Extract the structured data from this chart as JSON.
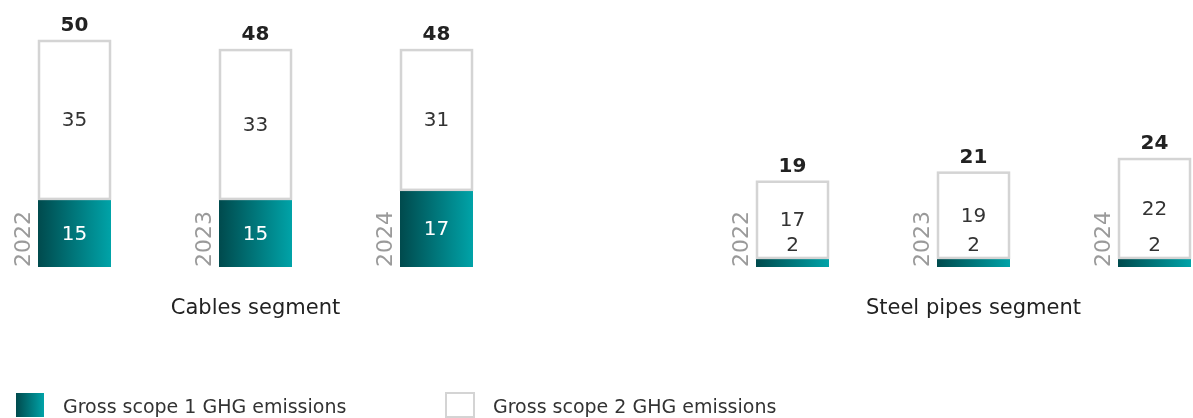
{
  "chart_data": [
    {
      "type": "bar",
      "stacked": true,
      "xlabel": "Cables segment",
      "categories": [
        "2022",
        "2023",
        "2024"
      ],
      "data_labels": true,
      "totals": [
        "50",
        "48",
        "48"
      ],
      "legend": "bottom",
      "series": [
        {
          "name": "Gross scope 1 GHG emissions",
          "color": "#00a3a8",
          "values": [
            15,
            15,
            17
          ]
        },
        {
          "name": "Gross scope 2 GHG emissions",
          "color": "#ffffff",
          "values": [
            35,
            33,
            31
          ]
        }
      ]
    },
    {
      "type": "bar",
      "stacked": true,
      "xlabel": "Steel pipes segment",
      "categories": [
        "2022",
        "2023",
        "2024"
      ],
      "data_labels": true,
      "totals": [
        "19",
        "21",
        "24"
      ],
      "series": [
        {
          "color": "#00a3a8",
          "values": [
            2,
            2,
            2
          ]
        },
        {
          "color": "#ffffff",
          "values": [
            17,
            19,
            22
          ]
        }
      ]
    }
  ]
}
